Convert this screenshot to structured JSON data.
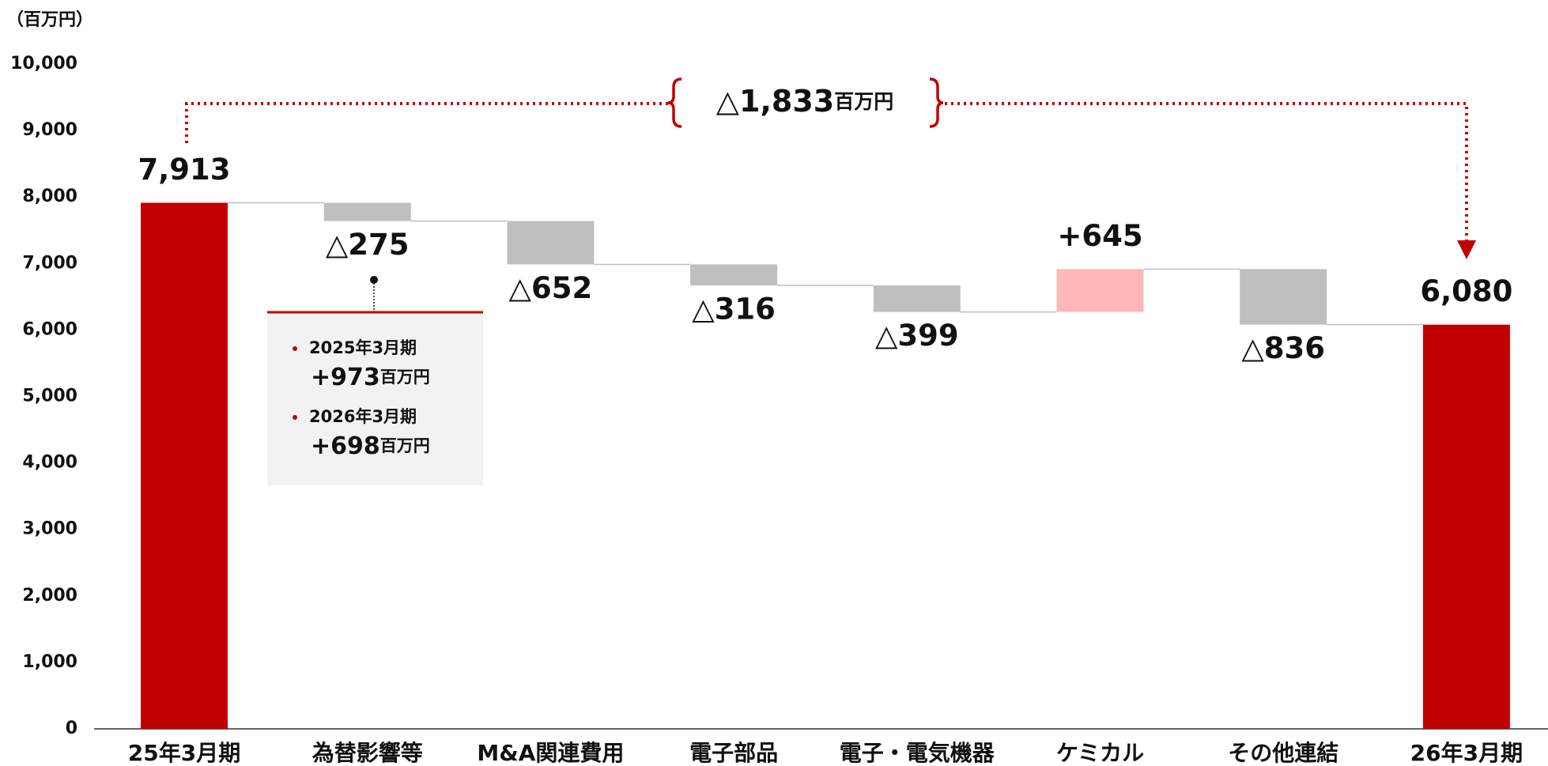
{
  "chart_data": {
    "type": "waterfall",
    "unit_label": "（百万円）",
    "categories": [
      "25年3月期",
      "為替影響等",
      "M&A関連費用",
      "電子部品",
      "電子・電気機器",
      "ケミカル",
      "その他連結",
      "26年3月期"
    ],
    "values": [
      7913,
      -275,
      -652,
      -316,
      -399,
      645,
      -836,
      6080
    ],
    "value_labels": [
      "7,913",
      "△275",
      "△652",
      "△316",
      "△399",
      "+645",
      "△836",
      "6,080"
    ],
    "colors": {
      "total": "#c00000",
      "decrease": "#bfbfbf",
      "increase": "#ffb7b7"
    },
    "ylim": [
      0,
      10000
    ],
    "yticks": [
      0,
      {
        "value": 1000,
        "label": "1,000"
      },
      {
        "value": 2000,
        "label": "2,000"
      },
      {
        "value": 3000,
        "label": "3,000"
      },
      {
        "value": 4000,
        "label": "4,000"
      },
      {
        "value": 5000,
        "label": "5,000"
      },
      {
        "value": 6000,
        "label": "6,000"
      },
      {
        "value": 7000,
        "label": "7,000"
      },
      {
        "value": 8000,
        "label": "8,000"
      },
      {
        "value": 9000,
        "label": "9,000"
      },
      {
        "value": 10000,
        "label": "10,000"
      }
    ],
    "change_annotation": {
      "text": "△1,833",
      "unit": "百万円"
    },
    "note_box": {
      "items": [
        {
          "period": "2025年3月期",
          "amount": "+973",
          "unit": "百万円"
        },
        {
          "period": "2026年3月期",
          "amount": "+698",
          "unit": "百万円"
        }
      ]
    }
  }
}
